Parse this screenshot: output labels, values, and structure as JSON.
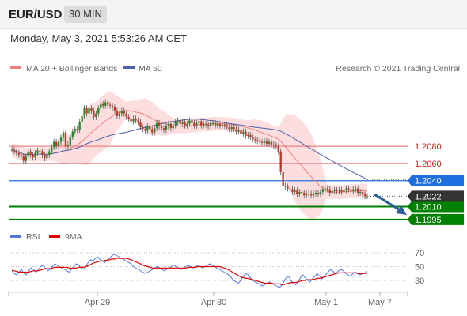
{
  "header": {
    "symbol": "EUR/USD",
    "interval": "30 MIN"
  },
  "timestamp": "Monday, May 3, 2021 5:53:26 AM CET",
  "legend": {
    "ma20": "MA 20 + Bollinger Bands",
    "ma50": "MA 50",
    "credit": "Research © 2021 Trading Central"
  },
  "rsi_legend": {
    "rsi": "RSI",
    "ma": "9MA"
  },
  "colors": {
    "ma20": "#f08080",
    "band": "#fbd3d3",
    "ma50": "#4a5fa8",
    "green": "#008000",
    "blue": "#1f6fe0",
    "current": "#333333",
    "rsi": "#5577dd",
    "rsi_ma": "#e00000"
  },
  "chart_data": [
    {
      "type": "candlestick",
      "title": "EUR/USD",
      "x_ticks": [
        "Apr 29",
        "Apr 30",
        "May 1",
        "May 7"
      ],
      "ylim": [
        1.1993,
        1.2158
      ],
      "current_price": "1.2022",
      "levels": [
        {
          "label": "1.2080",
          "value": 1.208,
          "kind": "resistance"
        },
        {
          "label": "1.2060",
          "value": 1.206,
          "kind": "resistance"
        },
        {
          "label": "1.2040",
          "value": 1.204,
          "kind": "pivot"
        },
        {
          "label": "1.2010",
          "value": 1.201,
          "kind": "target"
        },
        {
          "label": "1.1995",
          "value": 1.1995,
          "kind": "target"
        }
      ],
      "series": [
        {
          "name": "MA 20 + Bollinger Bands"
        },
        {
          "name": "MA 50"
        }
      ],
      "closes": [
        1.2076,
        1.2074,
        1.2072,
        1.207,
        1.2068,
        1.2063,
        1.2068,
        1.2074,
        1.207,
        1.2067,
        1.2072,
        1.2075,
        1.2074,
        1.207,
        1.2066,
        1.207,
        1.2074,
        1.2079,
        1.2085,
        1.208,
        1.2085,
        1.209,
        1.2096,
        1.208,
        1.2082,
        1.2091,
        1.2097,
        1.21,
        1.2099,
        1.2108,
        1.2115,
        1.2124,
        1.2118,
        1.2124,
        1.2121,
        1.2114,
        1.2118,
        1.2124,
        1.2129,
        1.2127,
        1.2131,
        1.2128,
        1.2127,
        1.2125,
        1.2121,
        1.2115,
        1.2118,
        1.2121,
        1.2118,
        1.2114,
        1.2112,
        1.2109,
        1.2112,
        1.211,
        1.2108,
        1.2102,
        1.21,
        1.2098,
        1.2103,
        1.21,
        1.2096,
        1.2101,
        1.2107,
        1.2103,
        1.2101,
        1.2099,
        1.2103,
        1.2106,
        1.2101,
        1.2104,
        1.2108,
        1.211,
        1.2106,
        1.2108,
        1.2104,
        1.2106,
        1.211,
        1.2107,
        1.2104,
        1.2107,
        1.2109,
        1.2104,
        1.2106,
        1.2105,
        1.2103,
        1.2107,
        1.2107,
        1.2104,
        1.2106,
        1.2104,
        1.2105,
        1.2104,
        1.2102,
        1.21,
        1.2102,
        1.21,
        1.2097,
        1.2099,
        1.2094,
        1.2097,
        1.2092,
        1.2093,
        1.2091,
        1.2088,
        1.2087,
        1.2086,
        1.2085,
        1.2084,
        1.2086,
        1.2083,
        1.2085,
        1.2082,
        1.2081,
        1.208,
        1.2074,
        1.205,
        1.2034,
        1.2033,
        1.2031,
        1.203,
        1.2027,
        1.2029,
        1.2025,
        1.2027,
        1.2026,
        1.2023,
        1.2025,
        1.2025,
        1.2023,
        1.2025,
        1.2026,
        1.2025,
        1.2027,
        1.203,
        1.2031,
        1.203,
        1.2026,
        1.2028,
        1.2029,
        1.2028,
        1.2029,
        1.2027,
        1.2029,
        1.2031,
        1.203,
        1.2028,
        1.203,
        1.2031,
        1.2026,
        1.2027,
        1.2024,
        1.2022,
        1.2022
      ]
    },
    {
      "type": "line",
      "title": "RSI",
      "y_ticks": [
        "70",
        "50",
        "30"
      ],
      "ylim": [
        15,
        80
      ],
      "series": [
        {
          "name": "RSI",
          "values": [
            44,
            40,
            38,
            42,
            46,
            40,
            38,
            44,
            48,
            46,
            42,
            45,
            50,
            52,
            48,
            44,
            46,
            50,
            54,
            52,
            50,
            48,
            46,
            44,
            42,
            46,
            50,
            54,
            52,
            48,
            46,
            50,
            56,
            60,
            58,
            62,
            64,
            60,
            58,
            56,
            60,
            62,
            66,
            68,
            66,
            64,
            62,
            60,
            58,
            56,
            54,
            50,
            48,
            46,
            44,
            42,
            40,
            42,
            44,
            46,
            48,
            50,
            48,
            46,
            44,
            46,
            48,
            50,
            52,
            50,
            48,
            46,
            48,
            50,
            52,
            50,
            48,
            50,
            52,
            50,
            48,
            50,
            52,
            54,
            52,
            50,
            48,
            46,
            44,
            42,
            40,
            38,
            34,
            30,
            28,
            26,
            30,
            36,
            40,
            38,
            34,
            30,
            28,
            26,
            24,
            22,
            24,
            26,
            28,
            26,
            24,
            22,
            20,
            22,
            28,
            34,
            36,
            30,
            26,
            24,
            28,
            34,
            38,
            34,
            30,
            28,
            32,
            36,
            40,
            36,
            32,
            36,
            40,
            44,
            46,
            42,
            40,
            44,
            46,
            44,
            40,
            38,
            36,
            40,
            42,
            40,
            38,
            40,
            41,
            43
          ]
        },
        {
          "name": "9MA",
          "values": [
            45,
            44,
            43,
            42,
            42,
            42,
            42,
            42,
            43,
            44,
            44,
            44,
            45,
            46,
            47,
            47,
            47,
            48,
            49,
            49,
            49,
            49,
            49,
            49,
            48,
            48,
            48,
            48,
            49,
            49,
            49,
            50,
            51,
            53,
            55,
            56,
            57,
            58,
            58,
            59,
            59,
            60,
            61,
            61,
            62,
            62,
            62,
            62,
            62,
            61,
            60,
            58,
            57,
            55,
            54,
            52,
            51,
            50,
            49,
            48,
            48,
            48,
            48,
            48,
            48,
            48,
            48,
            48,
            48,
            48,
            48,
            48,
            48,
            48,
            49,
            49,
            49,
            49,
            50,
            50,
            50,
            50,
            50,
            50,
            50,
            50,
            50,
            50,
            49,
            48,
            47,
            45,
            43,
            41,
            39,
            37,
            35,
            34,
            33,
            33,
            32,
            31,
            30,
            29,
            28,
            27,
            26,
            26,
            26,
            26,
            25,
            25,
            25,
            24,
            24,
            25,
            26,
            27,
            27,
            27,
            28,
            29,
            30,
            30,
            31,
            31,
            31,
            32,
            33,
            33,
            34,
            35,
            36,
            37,
            38,
            39,
            40,
            41,
            41,
            41,
            41,
            41,
            41,
            41,
            41,
            40,
            40,
            40,
            40,
            41
          ]
        }
      ]
    }
  ]
}
